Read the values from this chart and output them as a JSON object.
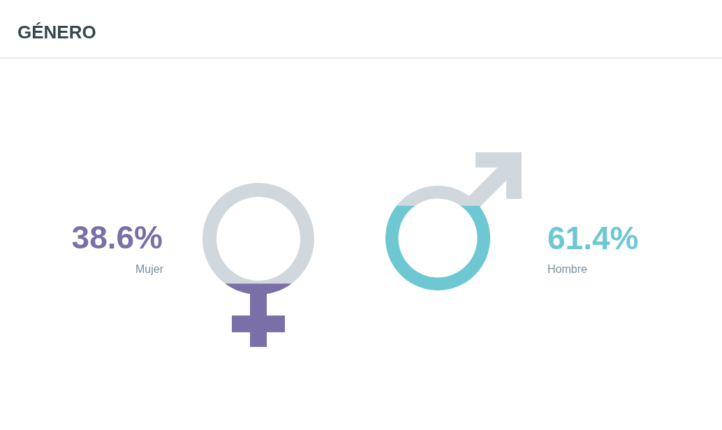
{
  "chart_data": {
    "type": "other",
    "title": "GÉNERO",
    "categories": [
      "Mujer",
      "Hombre"
    ],
    "values": [
      38.6,
      61.4
    ],
    "colors": [
      "#7b6fa8",
      "#6ec8d4"
    ],
    "value_labels": [
      "38.6%",
      "61.4%"
    ]
  }
}
